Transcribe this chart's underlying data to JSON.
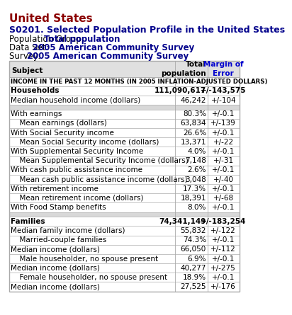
{
  "title_line1": "United States",
  "title_line2": "S0201. Selected Population Profile in the United States",
  "title_line3_label": "Population Group: ",
  "title_line3_value": "Total population",
  "title_line4_label": "Data Set: ",
  "title_line4_value": "2005 American Community Survey",
  "title_line5_label": "Survey: ",
  "title_line5_value": "2005 American Community Survey",
  "col_header_subject": "Subject",
  "col_header_total": "Total\npopulation",
  "col_header_moe": "Margin of\nError",
  "section_header": "INCOME IN THE PAST 12 MONTHS (IN 2005 INFLATION-ADJUSTED DOLLARS)",
  "rows": [
    {
      "subject": "Households",
      "total": "111,090,617",
      "moe": "+/-143,575",
      "bold": true,
      "indent": 0,
      "bg": "white"
    },
    {
      "subject": "Median household income (dollars)",
      "total": "46,242",
      "moe": "+/-104",
      "bold": false,
      "indent": 0,
      "bg": "white"
    },
    {
      "subject": "",
      "total": "",
      "moe": "",
      "bold": false,
      "indent": 0,
      "bg": "#d8d8d8"
    },
    {
      "subject": "With earnings",
      "total": "80.3%",
      "moe": "+/-0.1",
      "bold": false,
      "indent": 0,
      "bg": "white"
    },
    {
      "subject": "  Mean earnings (dollars)",
      "total": "63,834",
      "moe": "+/-139",
      "bold": false,
      "indent": 1,
      "bg": "white"
    },
    {
      "subject": "With Social Security income",
      "total": "26.6%",
      "moe": "+/-0.1",
      "bold": false,
      "indent": 0,
      "bg": "white"
    },
    {
      "subject": "  Mean Social Security income (dollars)",
      "total": "13,371",
      "moe": "+/-22",
      "bold": false,
      "indent": 1,
      "bg": "white"
    },
    {
      "subject": "With Supplemental Security Income",
      "total": "4.0%",
      "moe": "+/-0.1",
      "bold": false,
      "indent": 0,
      "bg": "white"
    },
    {
      "subject": "  Mean Supplemental Security Income (dollars)",
      "total": "7,148",
      "moe": "+/-31",
      "bold": false,
      "indent": 1,
      "bg": "white"
    },
    {
      "subject": "With cash public assistance income",
      "total": "2.6%",
      "moe": "+/-0.1",
      "bold": false,
      "indent": 0,
      "bg": "white"
    },
    {
      "subject": "  Mean cash public assistance income (dollars)",
      "total": "3,048",
      "moe": "+/-40",
      "bold": false,
      "indent": 1,
      "bg": "white"
    },
    {
      "subject": "With retirement income",
      "total": "17.3%",
      "moe": "+/-0.1",
      "bold": false,
      "indent": 0,
      "bg": "white"
    },
    {
      "subject": "  Mean retirement income (dollars)",
      "total": "18,391",
      "moe": "+/-68",
      "bold": false,
      "indent": 1,
      "bg": "white"
    },
    {
      "subject": "With Food Stamp benefits",
      "total": "8.0%",
      "moe": "+/-0.1",
      "bold": false,
      "indent": 0,
      "bg": "white"
    },
    {
      "subject": "",
      "total": "",
      "moe": "",
      "bold": false,
      "indent": 0,
      "bg": "#d8d8d8"
    },
    {
      "subject": "Families",
      "total": "74,341,149",
      "moe": "+/-183,254",
      "bold": true,
      "indent": 0,
      "bg": "white"
    },
    {
      "subject": "Median family income (dollars)",
      "total": "55,832",
      "moe": "+/-122",
      "bold": false,
      "indent": 0,
      "bg": "white"
    },
    {
      "subject": "  Married-couple families",
      "total": "74.3%",
      "moe": "+/-0.1",
      "bold": false,
      "indent": 1,
      "bg": "white"
    },
    {
      "subject": "Median income (dollars)",
      "total": "66,050",
      "moe": "+/-112",
      "bold": false,
      "indent": 0,
      "bg": "white"
    },
    {
      "subject": "  Male householder, no spouse present",
      "total": "6.9%",
      "moe": "+/-0.1",
      "bold": false,
      "indent": 1,
      "bg": "white"
    },
    {
      "subject": "Median income (dollars)",
      "total": "40,277",
      "moe": "+/-275",
      "bold": false,
      "indent": 0,
      "bg": "white"
    },
    {
      "subject": "  Female householder, no spouse present",
      "total": "18.9%",
      "moe": "+/-0.1",
      "bold": false,
      "indent": 1,
      "bg": "white"
    },
    {
      "subject": "Median income (dollars)",
      "total": "27,525",
      "moe": "+/-176",
      "bold": false,
      "indent": 0,
      "bg": "white"
    }
  ],
  "color_title1": "#8B0000",
  "color_title2": "#00008B",
  "color_moe_header": "#0000CD",
  "color_col_header_bg": "#e0e0e0",
  "table_border_color": "#aaaaaa",
  "font_size_title1": 11,
  "font_size_title2": 9,
  "font_size_meta": 8.5,
  "font_size_table": 7.5,
  "col_bounds": [
    0.01,
    0.715,
    0.855,
    0.99
  ]
}
